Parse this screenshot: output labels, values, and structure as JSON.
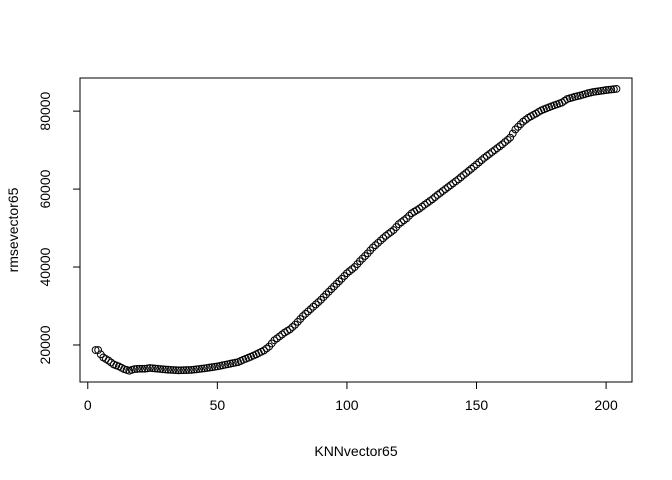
{
  "chart_data": {
    "type": "scatter",
    "title": "",
    "xlabel": "KNNvector65",
    "ylabel": "rmsevector65",
    "xlim": [
      -3,
      210
    ],
    "ylim": [
      10500,
      88500
    ],
    "xticks": [
      0,
      50,
      100,
      150,
      200
    ],
    "yticks": [
      20000,
      40000,
      60000,
      80000
    ],
    "grid": false,
    "legend": "none",
    "point_color": "#000000",
    "x_range": [
      3,
      204
    ],
    "keypoints": [
      [
        3,
        18700
      ],
      [
        4,
        18700
      ],
      [
        5,
        17600
      ],
      [
        6,
        16800
      ],
      [
        8,
        16000
      ],
      [
        10,
        15000
      ],
      [
        12,
        14500
      ],
      [
        14,
        13800
      ],
      [
        16,
        13400
      ],
      [
        18,
        13800
      ],
      [
        20,
        13900
      ],
      [
        22,
        13900
      ],
      [
        24,
        14100
      ],
      [
        27,
        13900
      ],
      [
        30,
        13700
      ],
      [
        35,
        13500
      ],
      [
        40,
        13600
      ],
      [
        45,
        14000
      ],
      [
        50,
        14500
      ],
      [
        55,
        15200
      ],
      [
        58,
        15600
      ],
      [
        60,
        16200
      ],
      [
        63,
        17000
      ],
      [
        65,
        17600
      ],
      [
        68,
        18600
      ],
      [
        70,
        19600
      ],
      [
        72,
        21200
      ],
      [
        74,
        22200
      ],
      [
        76,
        23200
      ],
      [
        78,
        24000
      ],
      [
        80,
        25200
      ],
      [
        83,
        27400
      ],
      [
        85,
        28600
      ],
      [
        88,
        30400
      ],
      [
        90,
        31600
      ],
      [
        92,
        33000
      ],
      [
        95,
        35000
      ],
      [
        98,
        37000
      ],
      [
        100,
        38400
      ],
      [
        103,
        40000
      ],
      [
        105,
        41500
      ],
      [
        108,
        43500
      ],
      [
        110,
        45000
      ],
      [
        113,
        46800
      ],
      [
        115,
        48000
      ],
      [
        118,
        49500
      ],
      [
        120,
        51000
      ],
      [
        123,
        52500
      ],
      [
        125,
        53800
      ],
      [
        128,
        55000
      ],
      [
        130,
        56000
      ],
      [
        133,
        57400
      ],
      [
        135,
        58500
      ],
      [
        138,
        60000
      ],
      [
        140,
        61000
      ],
      [
        143,
        62500
      ],
      [
        145,
        63600
      ],
      [
        148,
        65200
      ],
      [
        150,
        66300
      ],
      [
        153,
        68000
      ],
      [
        155,
        69000
      ],
      [
        158,
        70500
      ],
      [
        160,
        71500
      ],
      [
        163,
        73200
      ],
      [
        165,
        75300
      ],
      [
        168,
        77300
      ],
      [
        170,
        78300
      ],
      [
        173,
        79400
      ],
      [
        175,
        80200
      ],
      [
        178,
        81000
      ],
      [
        180,
        81500
      ],
      [
        183,
        82200
      ],
      [
        185,
        83100
      ],
      [
        188,
        83700
      ],
      [
        190,
        84000
      ],
      [
        193,
        84600
      ],
      [
        195,
        84900
      ],
      [
        198,
        85200
      ],
      [
        200,
        85400
      ],
      [
        204,
        85700
      ]
    ]
  }
}
